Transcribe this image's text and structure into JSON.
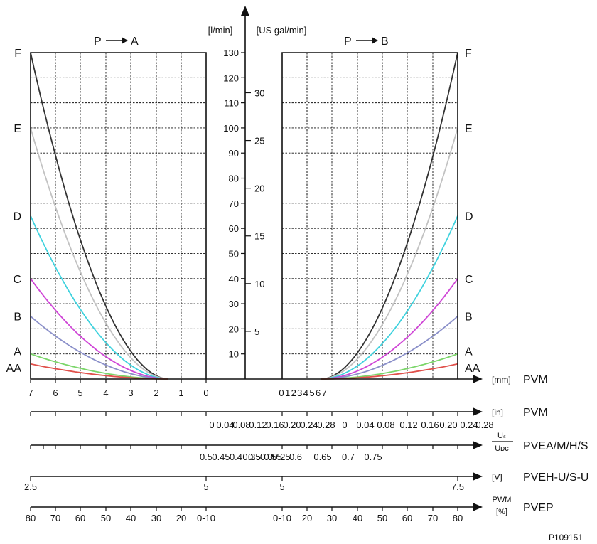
{
  "chart_data": {
    "type": "line",
    "left_title": "P → A",
    "right_title": "P → B",
    "ylabel_metric": "[l/min]",
    "ylabel_us": "[US gal/min]",
    "ylim": [
      0,
      130
    ],
    "y_ticks": [
      "10",
      "20",
      "30",
      "40",
      "50",
      "60",
      "70",
      "80",
      "90",
      "100",
      "110",
      "120",
      "130"
    ],
    "us_ticks": [
      {
        "label": "5",
        "value": 19
      },
      {
        "label": "10",
        "value": 38
      },
      {
        "label": "15",
        "value": 57
      },
      {
        "label": "20",
        "value": 76
      },
      {
        "label": "25",
        "value": 95
      },
      {
        "label": "30",
        "value": 114
      }
    ],
    "spool_letters": [
      {
        "label": "F",
        "value": 130
      },
      {
        "label": "E",
        "value": 100
      },
      {
        "label": "D",
        "value": 65
      },
      {
        "label": "C",
        "value": 40
      },
      {
        "label": "B",
        "value": 25
      },
      {
        "label": "A",
        "value": 10
      },
      {
        "label": "AA",
        "value": 6
      }
    ],
    "series": [
      {
        "name": "F",
        "color": "#333333",
        "max": 130
      },
      {
        "name": "E",
        "color": "#c2c2c2",
        "max": 100
      },
      {
        "name": "D",
        "color": "#3fd2de",
        "max": 65
      },
      {
        "name": "C",
        "color": "#cf45d6",
        "max": 40
      },
      {
        "name": "B",
        "color": "#8a8fc9",
        "max": 25
      },
      {
        "name": "A",
        "color": "#7bd66a",
        "max": 10
      },
      {
        "name": "AA",
        "color": "#e0504a",
        "max": 6
      }
    ],
    "scales": [
      {
        "unit": "[mm]",
        "name": "PVM",
        "left_labels": [
          "7",
          "6",
          "5",
          "4",
          "3",
          "2",
          "1",
          "0"
        ],
        "right_labels": [
          "0",
          "1",
          "2",
          "3",
          "4",
          "5",
          "6",
          "7"
        ]
      },
      {
        "unit": "[in]",
        "name": "PVM",
        "labels": [
          "0",
          "0.04",
          "0.08",
          "0.12",
          "0.16",
          "0.20",
          "0.24",
          "0.28",
          "0",
          "0.04",
          "0.08",
          "0.12",
          "0.16",
          "0.20",
          "0.24",
          "0.28"
        ]
      },
      {
        "unit_num": "Uₛ",
        "unit_den": "Uᴅᴄ",
        "name": "PVEA/M/H/S",
        "labels": [
          "0.5",
          "0.45",
          "0.4",
          "0.35",
          "0.3",
          "0.25",
          "0.5",
          "0.55",
          "0.6",
          "0.65",
          "0.7",
          "0.75"
        ]
      },
      {
        "unit": "[V]",
        "name": "PVEH-U/S-U",
        "labels": [
          "2.5",
          "5",
          "5",
          "7.5"
        ]
      },
      {
        "unit_top": "PWM",
        "unit_bottom": "[%]",
        "name": "PVEP",
        "left_labels": [
          "80",
          "70",
          "60",
          "50",
          "40",
          "30",
          "20",
          "0-10"
        ],
        "right_labels": [
          "0-10",
          "20",
          "30",
          "40",
          "50",
          "60",
          "70",
          "80"
        ]
      }
    ],
    "figure_id": "P109151"
  }
}
